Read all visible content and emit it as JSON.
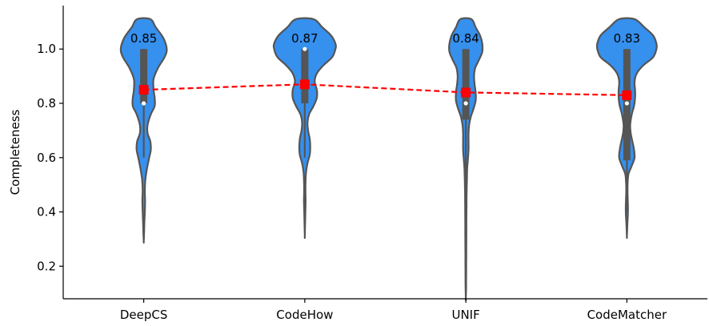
{
  "chart_data": {
    "type": "violin",
    "title": "",
    "xlabel": "",
    "ylabel": "Completeness",
    "ylim": [
      0.08,
      1.16
    ],
    "yticks": [
      0.2,
      0.4,
      0.6,
      0.8,
      1.0
    ],
    "ytick_labels": [
      "0.2",
      "0.4",
      "0.6",
      "0.8",
      "1.0"
    ],
    "grid": false,
    "categories": [
      "DeepCS",
      "CodeHow",
      "UNIF",
      "CodeMatcher"
    ],
    "means": [
      0.85,
      0.87,
      0.84,
      0.83
    ],
    "mean_labels": [
      "0.85",
      "0.87",
      "0.84",
      "0.83"
    ],
    "medians": [
      0.8,
      1.0,
      0.8,
      0.8
    ],
    "q1": [
      0.8,
      0.8,
      0.74,
      0.59
    ],
    "q3": [
      1.0,
      1.0,
      1.0,
      1.0
    ],
    "whisker_low": [
      0.6,
      0.6,
      0.4,
      0.4
    ],
    "whisker_high": [
      1.0,
      1.0,
      1.0,
      1.0
    ],
    "violin_min": [
      0.29,
      0.31,
      0.08,
      0.31
    ],
    "violin_max": [
      1.11,
      1.11,
      1.11,
      1.11
    ],
    "violin_profiles": [
      [
        [
          1.11,
          0.12
        ],
        [
          1.08,
          0.22
        ],
        [
          1.04,
          0.36
        ],
        [
          1.0,
          0.42
        ],
        [
          0.97,
          0.38
        ],
        [
          0.93,
          0.26
        ],
        [
          0.89,
          0.18
        ],
        [
          0.85,
          0.18
        ],
        [
          0.82,
          0.2
        ],
        [
          0.79,
          0.2
        ],
        [
          0.76,
          0.13
        ],
        [
          0.72,
          0.07
        ],
        [
          0.69,
          0.07
        ],
        [
          0.66,
          0.12
        ],
        [
          0.63,
          0.13
        ],
        [
          0.6,
          0.1
        ],
        [
          0.56,
          0.06
        ],
        [
          0.52,
          0.03
        ],
        [
          0.48,
          0.02
        ],
        [
          0.44,
          0.025
        ],
        [
          0.4,
          0.02
        ],
        [
          0.36,
          0.012
        ],
        [
          0.32,
          0.006
        ],
        [
          0.29,
          0.0
        ]
      ],
      [
        [
          1.11,
          0.16
        ],
        [
          1.08,
          0.32
        ],
        [
          1.05,
          0.48
        ],
        [
          1.02,
          0.56
        ],
        [
          1.0,
          0.56
        ],
        [
          0.97,
          0.5
        ],
        [
          0.94,
          0.34
        ],
        [
          0.91,
          0.22
        ],
        [
          0.88,
          0.18
        ],
        [
          0.85,
          0.22
        ],
        [
          0.82,
          0.22
        ],
        [
          0.79,
          0.16
        ],
        [
          0.76,
          0.08
        ],
        [
          0.73,
          0.05
        ],
        [
          0.7,
          0.06
        ],
        [
          0.67,
          0.09
        ],
        [
          0.64,
          0.1
        ],
        [
          0.61,
          0.09
        ],
        [
          0.58,
          0.05
        ],
        [
          0.55,
          0.025
        ],
        [
          0.52,
          0.015
        ],
        [
          0.48,
          0.012
        ],
        [
          0.44,
          0.015
        ],
        [
          0.4,
          0.01
        ],
        [
          0.36,
          0.006
        ],
        [
          0.31,
          0.0
        ]
      ],
      [
        [
          1.11,
          0.1
        ],
        [
          1.08,
          0.18
        ],
        [
          1.05,
          0.26
        ],
        [
          1.02,
          0.3
        ],
        [
          0.99,
          0.3
        ],
        [
          0.96,
          0.24
        ],
        [
          0.93,
          0.17
        ],
        [
          0.9,
          0.15
        ],
        [
          0.87,
          0.16
        ],
        [
          0.84,
          0.18
        ],
        [
          0.81,
          0.18
        ],
        [
          0.78,
          0.14
        ],
        [
          0.75,
          0.09
        ],
        [
          0.72,
          0.06
        ],
        [
          0.69,
          0.05
        ],
        [
          0.66,
          0.05
        ],
        [
          0.63,
          0.05
        ],
        [
          0.6,
          0.04
        ],
        [
          0.56,
          0.025
        ],
        [
          0.52,
          0.02
        ],
        [
          0.48,
          0.015
        ],
        [
          0.44,
          0.013
        ],
        [
          0.4,
          0.012
        ],
        [
          0.36,
          0.01
        ],
        [
          0.32,
          0.01
        ],
        [
          0.28,
          0.009
        ],
        [
          0.24,
          0.008
        ],
        [
          0.2,
          0.007
        ],
        [
          0.16,
          0.006
        ],
        [
          0.12,
          0.005
        ],
        [
          0.08,
          0.0
        ]
      ],
      [
        [
          1.11,
          0.14
        ],
        [
          1.08,
          0.32
        ],
        [
          1.05,
          0.48
        ],
        [
          1.02,
          0.54
        ],
        [
          1.0,
          0.54
        ],
        [
          0.97,
          0.48
        ],
        [
          0.94,
          0.3
        ],
        [
          0.91,
          0.18
        ],
        [
          0.88,
          0.14
        ],
        [
          0.85,
          0.15
        ],
        [
          0.82,
          0.15
        ],
        [
          0.79,
          0.13
        ],
        [
          0.76,
          0.09
        ],
        [
          0.72,
          0.06
        ],
        [
          0.69,
          0.07
        ],
        [
          0.66,
          0.1
        ],
        [
          0.63,
          0.13
        ],
        [
          0.6,
          0.14
        ],
        [
          0.57,
          0.09
        ],
        [
          0.54,
          0.03
        ],
        [
          0.51,
          0.015
        ],
        [
          0.48,
          0.012
        ],
        [
          0.45,
          0.015
        ],
        [
          0.42,
          0.02
        ],
        [
          0.39,
          0.018
        ],
        [
          0.36,
          0.01
        ],
        [
          0.31,
          0.0
        ]
      ]
    ],
    "colors": {
      "violin_fill": "#3590ee",
      "violin_edge": "#555555",
      "box": "#555555",
      "median_dot": "#ffffff",
      "mean_marker": "#ff0000",
      "mean_line": "#ff0000",
      "axis": "#000000"
    }
  }
}
